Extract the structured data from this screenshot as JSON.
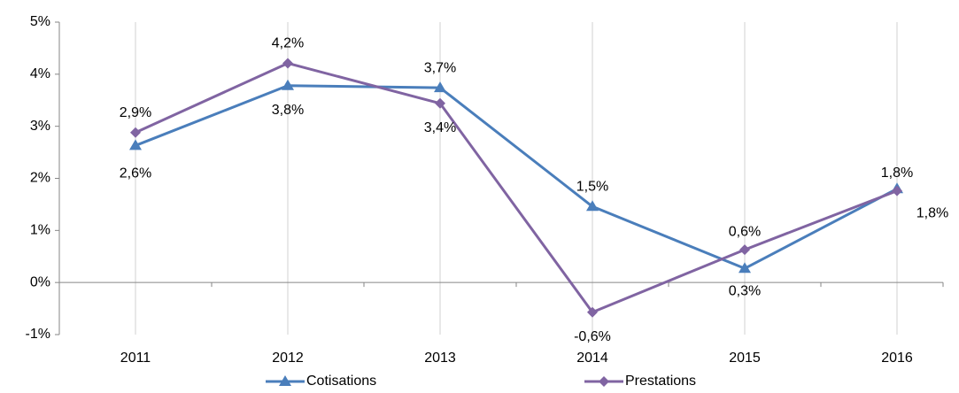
{
  "chart_data": {
    "type": "line",
    "categories": [
      "2011",
      "2012",
      "2013",
      "2014",
      "2015",
      "2016"
    ],
    "series": [
      {
        "name": "Cotisations",
        "color": "#4a7ebb",
        "marker": "triangle",
        "values": [
          2.63,
          3.78,
          3.74,
          1.46,
          0.27,
          1.8
        ],
        "value_labels": [
          "2,6%",
          "3,8%",
          "3,7%",
          "1,5%",
          "0,3%",
          "1,8%"
        ]
      },
      {
        "name": "Prestations",
        "color": "#8064a2",
        "marker": "diamond",
        "values": [
          2.88,
          4.21,
          3.44,
          -0.57,
          0.63,
          1.76
        ],
        "value_labels": [
          "2,9%",
          "4,2%",
          "3,4%",
          "-0,6%",
          "0,6%",
          "1,8%"
        ]
      }
    ],
    "ylim": [
      -1,
      5
    ],
    "yticks": [
      {
        "value": -1,
        "label": "-1%"
      },
      {
        "value": 0,
        "label": "0%"
      },
      {
        "value": 1,
        "label": "1%"
      },
      {
        "value": 2,
        "label": "2%"
      },
      {
        "value": 3,
        "label": "3%"
      },
      {
        "value": 4,
        "label": "4%"
      },
      {
        "value": 5,
        "label": "5%"
      }
    ],
    "grid": "x",
    "legend": "bottom"
  }
}
